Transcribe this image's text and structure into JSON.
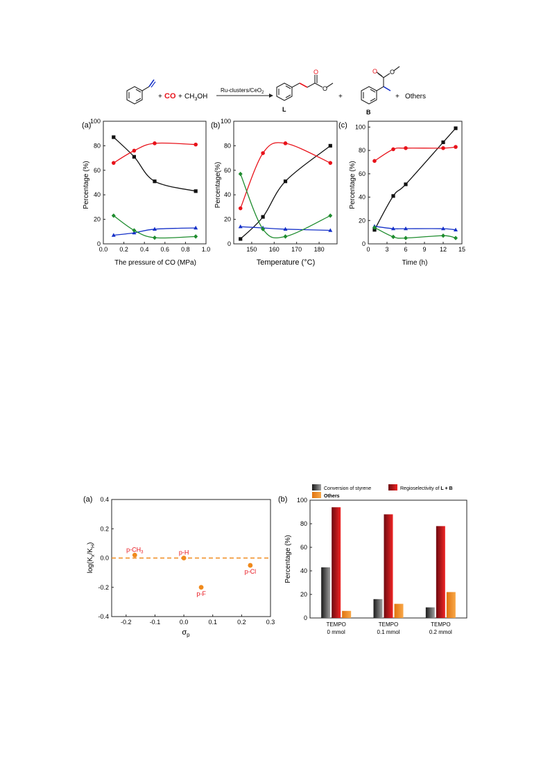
{
  "scheme": {
    "plus": "+",
    "co": "CO",
    "methanol": "CH",
    "methanol_sub": "3",
    "methanol_tail": "OH",
    "catalyst": "Ru-clusters/CeO",
    "catalyst_sub": "2",
    "label_L": "L",
    "label_B": "B",
    "others": "Others",
    "colors": {
      "co": "#e8121a",
      "bond_L": "#e8121a",
      "bond_B": "#1430c8"
    }
  },
  "chart_data": [
    {
      "type": "line",
      "panel": "(a)",
      "xlabel": "The pressure of CO (MPa)",
      "ylabel": "Percentage (%)",
      "xlim": [
        0.0,
        1.0
      ],
      "ylim": [
        0,
        100
      ],
      "xticks": [
        0.0,
        0.2,
        0.4,
        0.6,
        0.8,
        1.0
      ],
      "xtick_labels": [
        "0.0",
        "0.2",
        "0.4",
        "0.6",
        "0.8",
        "1.0"
      ],
      "yticks": [
        0,
        20,
        40,
        60,
        80,
        100
      ],
      "series": [
        {
          "color": "#111111",
          "marker": "square",
          "x": [
            0.1,
            0.3,
            0.5,
            0.9
          ],
          "y": [
            87,
            71,
            51,
            43
          ]
        },
        {
          "color": "#e8121a",
          "marker": "circle",
          "x": [
            0.1,
            0.3,
            0.5,
            0.9
          ],
          "y": [
            66,
            76,
            82,
            81
          ]
        },
        {
          "color": "#1430c8",
          "marker": "triangle",
          "x": [
            0.1,
            0.3,
            0.5,
            0.9
          ],
          "y": [
            7,
            9,
            12,
            13
          ]
        },
        {
          "color": "#1e8c2e",
          "marker": "diamond",
          "x": [
            0.1,
            0.3,
            0.5,
            0.9
          ],
          "y": [
            23,
            11,
            5,
            6
          ]
        }
      ]
    },
    {
      "type": "line",
      "panel": "(b)",
      "xlabel": "Temperature (°C)",
      "ylabel": "Percentage(%)",
      "xlim": [
        142,
        188
      ],
      "ylim": [
        0,
        100
      ],
      "xticks": [
        150,
        160,
        170,
        180
      ],
      "xtick_labels": [
        "150",
        "160",
        "170",
        "180"
      ],
      "yticks": [
        0,
        20,
        40,
        60,
        80,
        100
      ],
      "series": [
        {
          "color": "#111111",
          "marker": "square",
          "x": [
            145,
            155,
            165,
            185
          ],
          "y": [
            4,
            22,
            51,
            80
          ]
        },
        {
          "color": "#e8121a",
          "marker": "circle",
          "x": [
            145,
            155,
            165,
            185
          ],
          "y": [
            29,
            74,
            82,
            66
          ]
        },
        {
          "color": "#1430c8",
          "marker": "triangle",
          "x": [
            145,
            155,
            165,
            185
          ],
          "y": [
            14,
            13,
            12,
            11
          ]
        },
        {
          "color": "#1e8c2e",
          "marker": "diamond",
          "x": [
            145,
            155,
            165,
            185
          ],
          "y": [
            57,
            12,
            6,
            23
          ]
        }
      ]
    },
    {
      "type": "line",
      "panel": "(c)",
      "xlabel": "Time (h)",
      "ylabel": "Percentage (%)",
      "xlim": [
        0,
        15
      ],
      "ylim": [
        0,
        105
      ],
      "xticks": [
        0,
        3,
        6,
        9,
        12,
        15
      ],
      "xtick_labels": [
        "0",
        "3",
        "6",
        "9",
        "12",
        "15"
      ],
      "yticks": [
        0,
        20,
        40,
        60,
        80,
        100
      ],
      "series": [
        {
          "color": "#111111",
          "marker": "square",
          "x": [
            1,
            4,
            6,
            12,
            14
          ],
          "y": [
            12,
            41,
            51,
            87,
            99
          ]
        },
        {
          "color": "#e8121a",
          "marker": "circle",
          "x": [
            1,
            4,
            6,
            12,
            14
          ],
          "y": [
            71,
            81,
            82,
            82,
            83
          ]
        },
        {
          "color": "#1430c8",
          "marker": "triangle",
          "x": [
            1,
            4,
            6,
            12,
            14
          ],
          "y": [
            15,
            13,
            13,
            13,
            12
          ]
        },
        {
          "color": "#1e8c2e",
          "marker": "diamond",
          "x": [
            1,
            4,
            6,
            12,
            14
          ],
          "y": [
            14,
            6,
            5,
            7,
            5
          ]
        }
      ]
    },
    {
      "type": "scatter",
      "panel": "(a)",
      "xlabel": "σ",
      "xlabel_sub": "p",
      "ylabel": "log(K",
      "ylabel_sub1": "x",
      "ylabel_mid": "/K",
      "ylabel_sub2": "H",
      "ylabel_end": ")",
      "xlim": [
        -0.25,
        0.3
      ],
      "ylim": [
        -0.4,
        0.4
      ],
      "xticks": [
        -0.2,
        -0.1,
        0.0,
        0.1,
        0.2,
        0.3
      ],
      "xtick_labels": [
        "-0.2",
        "-0.1",
        "0.0",
        "0.1",
        "0.2",
        "0.3"
      ],
      "yticks": [
        -0.4,
        -0.2,
        0.0,
        0.2,
        0.4
      ],
      "ytick_labels": [
        "-0.4",
        "-0.2",
        "0.0",
        "0.2",
        "0.4"
      ],
      "reference_line_y": 0.0,
      "point_color": "#f08a1c",
      "points": [
        {
          "label": "p-CH",
          "label_sub": "3",
          "x": -0.17,
          "y": 0.02,
          "label_pos": "above"
        },
        {
          "label": "p-H",
          "label_sub": "",
          "x": 0.0,
          "y": 0.0,
          "label_pos": "above"
        },
        {
          "label": "p-F",
          "label_sub": "",
          "x": 0.06,
          "y": -0.2,
          "label_pos": "below"
        },
        {
          "label": "p-Cl",
          "label_sub": "",
          "x": 0.23,
          "y": -0.05,
          "label_pos": "below"
        }
      ]
    },
    {
      "type": "bar",
      "panel": "(b)",
      "ylabel": "Percentage (%)",
      "ylim": [
        0,
        100
      ],
      "yticks": [
        0,
        20,
        40,
        60,
        80,
        100
      ],
      "categories": [
        {
          "line1": "TEMPO",
          "line2": "0 mmol"
        },
        {
          "line1": "TEMPO",
          "line2": "0.1 mmol"
        },
        {
          "line1": "TEMPO",
          "line2": "0.2 mmol"
        }
      ],
      "legend": {
        "conversion": "Conversion of styrene",
        "regio_prefix": "Regioselectivity of ",
        "regio_bold": "L + B",
        "others": "Others"
      },
      "series": [
        {
          "key": "conversion",
          "color_dark": "#202020",
          "color_light": "#9a9a9a",
          "values": [
            43,
            16,
            9
          ]
        },
        {
          "key": "regio",
          "color_dark": "#7a0c12",
          "color_light": "#f02020",
          "values": [
            94,
            88,
            78
          ]
        },
        {
          "key": "others",
          "color_dark": "#e87a10",
          "color_light": "#f7a040",
          "values": [
            6,
            12,
            22
          ]
        }
      ]
    }
  ]
}
